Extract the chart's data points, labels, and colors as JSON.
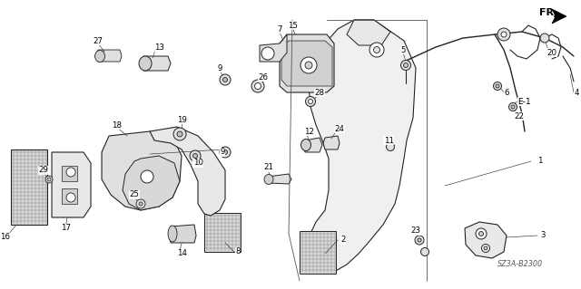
{
  "bg_color": "#ffffff",
  "line_color": "#222222",
  "label_color": "#000000",
  "figsize": [
    6.4,
    3.19
  ],
  "dpi": 100,
  "diagram_code": "SZ3A-B2300",
  "direction_label": "FR."
}
